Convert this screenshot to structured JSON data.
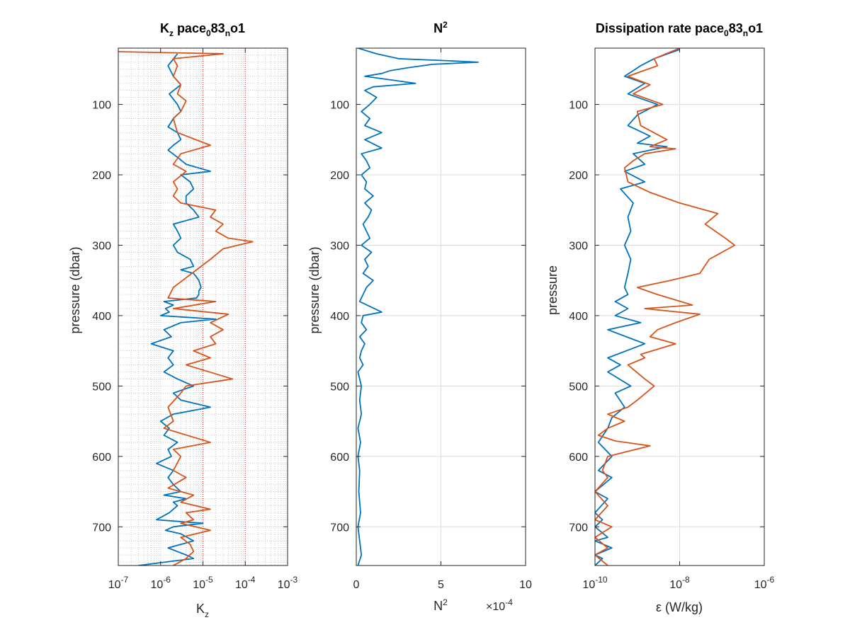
{
  "chart_data": [
    {
      "type": "line",
      "xscale": "log",
      "xlim": [
        1e-07,
        0.001
      ],
      "ylim": [
        20,
        755
      ],
      "y_reversed": true,
      "title": "K_z pace_083_n o1",
      "xlabel": "K_z",
      "ylabel": "pressure (dbar)",
      "xticks": [
        1e-07,
        1e-06,
        1e-05,
        0.0001,
        0.001
      ],
      "xtick_labels": [
        "10-7",
        "10-6",
        "10-5",
        "10-4",
        "10-3"
      ],
      "yticks": [
        100,
        200,
        300,
        400,
        500,
        600,
        700
      ],
      "ytick_labels": [
        "100",
        "200",
        "300",
        "400",
        "500",
        "600",
        "700"
      ],
      "grid": "minor dotted",
      "reference_lines_x": [
        1e-05,
        0.0001
      ],
      "series": [
        {
          "color": "#0072BD",
          "x": [
            2.5e-06,
            1.5e-06,
            2e-06,
            3e-06,
            1.6e-06,
            2.5e-06,
            3e-06,
            2e-06,
            1.5e-06,
            2.5e-06,
            3e-06,
            2e-06,
            1.5e-06,
            2.5e-06,
            4e-06,
            1.5e-05,
            3e-06,
            5e-06,
            6e-06,
            4e-06,
            4e-06,
            6e-06,
            8e-06,
            2e-06,
            2.5e-06,
            3e-06,
            2e-06,
            2.5e-06,
            5e-06,
            6e-06,
            3e-06,
            6e-06,
            7e-06,
            8e-06,
            9e-06,
            8e-06,
            8e-06,
            7e-06,
            1.2e-06,
            2e-06,
            1.3e-06,
            1.6e-06,
            1e-06,
            2e-05,
            3e-06,
            1.2e-06,
            1.8e-06,
            6e-07,
            2e-06,
            1.5e-06,
            2e-06,
            1.2e-06,
            2.5e-06,
            6e-06,
            2e-06,
            3e-06,
            1.5e-05,
            2e-06,
            1e-06,
            1.6e-06,
            1.2e-06,
            2.5e-06,
            1.5e-06,
            1.8e-06,
            8e-07,
            2e-06,
            1.5e-06,
            2e-06,
            3e-06,
            1.2e-06,
            4e-06,
            2e-06,
            2.5e-06,
            1.6e-06,
            8e-07,
            1e-05,
            2e-06,
            1.3e-06,
            3e-06,
            6e-06,
            1.5e-06,
            4e-06,
            6e-06,
            3e-07
          ],
          "y": [
            28,
            45,
            60,
            72,
            85,
            100,
            110,
            120,
            132,
            140,
            150,
            158,
            165,
            175,
            185,
            195,
            200,
            210,
            220,
            230,
            240,
            250,
            260,
            270,
            280,
            290,
            300,
            310,
            320,
            330,
            335,
            340,
            345,
            350,
            360,
            365,
            370,
            375,
            380,
            385,
            390,
            395,
            400,
            405,
            410,
            420,
            430,
            440,
            450,
            460,
            470,
            480,
            490,
            500,
            510,
            520,
            530,
            540,
            550,
            560,
            570,
            580,
            590,
            600,
            610,
            620,
            630,
            640,
            650,
            655,
            660,
            665,
            670,
            680,
            690,
            695,
            700,
            705,
            710,
            720,
            730,
            740,
            745,
            755
          ]
        },
        {
          "color": "#D95319",
          "x": [
            1e-07,
            3e-05,
            2e-06,
            2.5e-06,
            2e-06,
            3e-06,
            2.5e-06,
            4e-06,
            3e-06,
            2e-06,
            2.5e-06,
            1.5e-05,
            3e-06,
            2e-06,
            4e-06,
            2e-06,
            2.5e-06,
            2e-06,
            3e-06,
            2e-05,
            1.5e-05,
            3e-05,
            2e-05,
            4e-05,
            0.00015,
            3e-05,
            1.5e-05,
            2e-06,
            1.5e-06,
            2e-05,
            2e-06,
            4e-05,
            1.5e-05,
            3e-05,
            1.5e-05,
            2e-05,
            6e-06,
            1.5e-05,
            4e-06,
            5e-05,
            4e-06,
            3e-06,
            1.5e-06,
            2e-06,
            1.2e-06,
            1.5e-05,
            2e-06,
            3e-06,
            2e-06,
            4e-06,
            1.5e-06,
            6e-06,
            3e-06,
            1.5e-05,
            4e-06,
            6e-06,
            3e-06,
            1.5e-05,
            3e-06,
            5e-06,
            6e-06,
            4e-06,
            2e-06
          ],
          "y": [
            25,
            28,
            35,
            45,
            60,
            72,
            85,
            95,
            110,
            120,
            140,
            158,
            170,
            185,
            195,
            210,
            220,
            230,
            240,
            250,
            260,
            270,
            280,
            290,
            295,
            305,
            320,
            360,
            375,
            380,
            390,
            398,
            410,
            420,
            430,
            440,
            450,
            460,
            470,
            490,
            500,
            510,
            530,
            550,
            560,
            580,
            590,
            600,
            620,
            630,
            645,
            655,
            665,
            675,
            680,
            690,
            695,
            705,
            715,
            725,
            735,
            745,
            755
          ]
        }
      ]
    },
    {
      "type": "line",
      "xlim": [
        0,
        10
      ],
      "ylim": [
        20,
        755
      ],
      "y_reversed": true,
      "title": "N2",
      "xlabel": "N2",
      "x_multiplier": "×10-4",
      "ylabel": "pressure (dbar)",
      "xticks": [
        0,
        5,
        10
      ],
      "xtick_labels": [
        "0",
        "5",
        "10"
      ],
      "yticks": [
        100,
        200,
        300,
        400,
        500,
        600,
        700
      ],
      "ytick_labels": [
        "100",
        "200",
        "300",
        "400",
        "500",
        "600",
        "700"
      ],
      "grid": "major",
      "series": [
        {
          "color": "#0072BD",
          "x": [
            0.1,
            1.2,
            2.5,
            5.5,
            7.2,
            4.5,
            3,
            2,
            1.5,
            0.5,
            3.5,
            1,
            0.5,
            1.2,
            0.8,
            0.3,
            0.8,
            0.5,
            1.5,
            0.5,
            1.5,
            0.3,
            0.6,
            0.8,
            0.3,
            0.6,
            0.5,
            1,
            0.5,
            0.9,
            0.7,
            0.4,
            0.6,
            0.8,
            0.3,
            0.9,
            0.5,
            0.7,
            0.4,
            1,
            0.6,
            0.2,
            1.5,
            0.4,
            0.3,
            0.6,
            0.2,
            0.5,
            0.3,
            0.2,
            0.4,
            0.1,
            0.3,
            0.2,
            0.3,
            0.1,
            0.25,
            0.1,
            0.2,
            0.15,
            0.25,
            0.1,
            0.2,
            0.3,
            0.1
          ],
          "y": [
            20,
            28,
            35,
            38,
            40,
            43,
            48,
            52,
            56,
            60,
            70,
            75,
            80,
            90,
            100,
            110,
            120,
            130,
            140,
            150,
            162,
            170,
            180,
            190,
            200,
            210,
            220,
            230,
            240,
            250,
            260,
            270,
            280,
            290,
            300,
            310,
            320,
            330,
            340,
            350,
            360,
            380,
            395,
            400,
            410,
            420,
            430,
            440,
            450,
            460,
            470,
            480,
            500,
            520,
            540,
            560,
            580,
            600,
            620,
            650,
            680,
            700,
            720,
            740,
            755
          ]
        }
      ]
    },
    {
      "type": "line",
      "xscale": "log",
      "xlim": [
        1e-10,
        1e-06
      ],
      "ylim": [
        20,
        755
      ],
      "y_reversed": true,
      "title": "Dissipation rate pace_083_n o1",
      "xlabel": "ε (W/kg)",
      "ylabel": "pressure",
      "xticks": [
        1e-10,
        1e-08,
        1e-06
      ],
      "xtick_labels": [
        "10-10",
        "10-8",
        "10-6"
      ],
      "yticks": [
        100,
        200,
        300,
        400,
        500,
        600,
        700
      ],
      "ytick_labels": [
        "100",
        "200",
        "300",
        "400",
        "500",
        "600",
        "700"
      ],
      "grid": "major",
      "series": [
        {
          "color": "#0072BD",
          "x": [
            1e-08,
            2.5e-09,
            1.2e-09,
            5e-10,
            1.5e-09,
            6e-10,
            3e-09,
            1e-09,
            6e-10,
            2e-09,
            1e-09,
            5e-09,
            8e-10,
            1.5e-09,
            5e-10,
            1.5e-09,
            4e-10,
            8e-10,
            6e-10,
            7e-10,
            5e-10,
            7e-10,
            6e-10,
            5e-10,
            6e-10,
            3e-10,
            6e-10,
            3e-10,
            1.2e-09,
            2e-10,
            1.5e-09,
            2e-10,
            4e-10,
            2e-10,
            7e-10,
            3e-10,
            5e-10,
            2.5e-10,
            2e-10,
            1.2e-10,
            2.5e-10,
            1.2e-10,
            2.5e-10,
            1e-10,
            2e-10,
            1e-10,
            1.5e-10,
            1e-10,
            2e-10,
            1e-10,
            2.5e-10,
            1e-10,
            1.5e-10,
            1e-10
          ],
          "y": [
            22,
            35,
            45,
            60,
            70,
            85,
            100,
            115,
            130,
            145,
            155,
            160,
            170,
            185,
            195,
            210,
            220,
            240,
            260,
            280,
            300,
            320,
            340,
            360,
            370,
            380,
            390,
            400,
            410,
            420,
            440,
            460,
            470,
            480,
            500,
            510,
            530,
            545,
            560,
            580,
            600,
            620,
            630,
            650,
            660,
            680,
            690,
            700,
            715,
            720,
            730,
            740,
            745,
            755
          ]
        },
        {
          "color": "#D95319",
          "x": [
            1e-08,
            2.5e-09,
            3e-09,
            6e-10,
            2e-09,
            8e-10,
            4e-09,
            1e-09,
            1.2e-09,
            5e-09,
            2e-09,
            8e-09,
            1.5e-09,
            8e-10,
            5e-10,
            6e-10,
            2e-09,
            1e-08,
            8e-08,
            4e-08,
            1.2e-07,
            2e-07,
            5e-08,
            3e-08,
            6e-09,
            1e-09,
            3e-09,
            2e-08,
            1.5e-09,
            3e-08,
            8e-09,
            3e-09,
            2e-09,
            8e-09,
            1.2e-09,
            1.5e-09,
            6e-10,
            1.5e-09,
            2.5e-09,
            1e-09,
            6e-10,
            2e-10,
            5e-10,
            2e-10,
            1.2e-10,
            3e-10,
            2e-09,
            2e-10,
            1.5e-10,
            2e-10,
            1e-10,
            2e-10,
            1e-10,
            2.5e-10,
            1e-10,
            2e-10,
            1e-10,
            2e-10
          ],
          "y": [
            20,
            35,
            45,
            60,
            72,
            85,
            100,
            110,
            130,
            150,
            160,
            163,
            170,
            180,
            190,
            210,
            225,
            240,
            255,
            270,
            290,
            300,
            320,
            340,
            350,
            360,
            370,
            385,
            390,
            398,
            410,
            420,
            430,
            440,
            455,
            460,
            470,
            490,
            500,
            520,
            530,
            540,
            550,
            560,
            570,
            578,
            585,
            600,
            620,
            630,
            650,
            670,
            690,
            700,
            715,
            730,
            740,
            755
          ]
        }
      ]
    }
  ]
}
